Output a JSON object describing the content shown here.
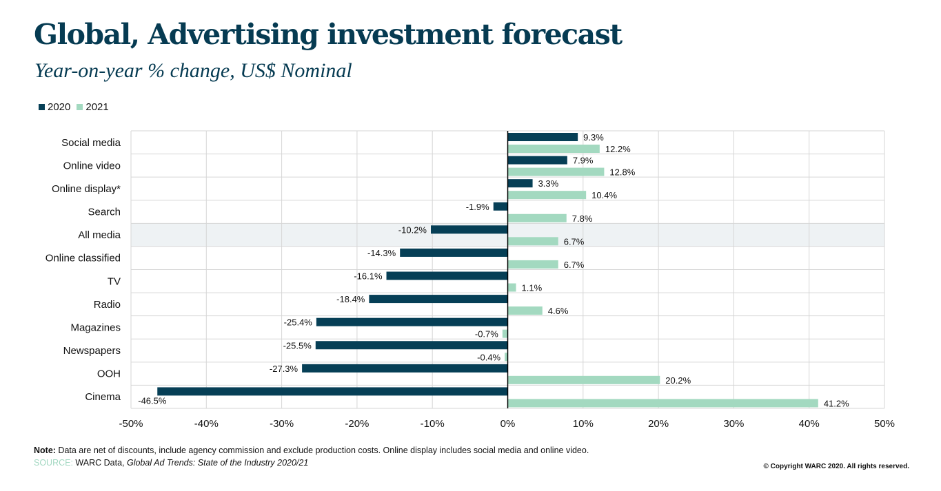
{
  "header": {
    "title": "Global, Advertising investment forecast",
    "subtitle": "Year-on-year % change, US$ Nominal"
  },
  "colors": {
    "series_2020": "#063f56",
    "series_2021": "#a3d9c0",
    "title": "#063b52",
    "highlight_row": "#eef2f4",
    "grid": "#d6d6d6",
    "source_label": "#a3d8c2"
  },
  "chart_data": {
    "type": "bar",
    "orientation": "horizontal",
    "title": "Global, Advertising investment forecast",
    "subtitle": "Year-on-year % change, US$ Nominal",
    "xlabel": "",
    "ylabel": "",
    "xlim": [
      -50,
      50
    ],
    "x_ticks": [
      -50,
      -40,
      -30,
      -20,
      -10,
      0,
      10,
      20,
      30,
      40,
      50
    ],
    "x_tick_labels": [
      "-50%",
      "-40%",
      "-30%",
      "-20%",
      "-10%",
      "0%",
      "10%",
      "20%",
      "30%",
      "40%",
      "50%"
    ],
    "grid": true,
    "legend_position": "top-left",
    "highlighted_category": "All media",
    "categories": [
      "Social media",
      "Online video",
      "Online display*",
      "Search",
      "All media",
      "Online classified",
      "TV",
      "Radio",
      "Magazines",
      "Newspapers",
      "OOH",
      "Cinema"
    ],
    "series": [
      {
        "name": "2020",
        "values": [
          9.3,
          7.9,
          3.3,
          -1.9,
          -10.2,
          -14.3,
          -16.1,
          -18.4,
          -25.4,
          -25.5,
          -27.3,
          -46.5
        ],
        "labels": [
          "9.3%",
          "7.9%",
          "3.3%",
          "-1.9%",
          "-10.2%",
          "-14.3%",
          "-16.1%",
          "-18.4%",
          "-25.4%",
          "-25.5%",
          "-27.3%",
          "-46.5%"
        ]
      },
      {
        "name": "2021",
        "values": [
          12.2,
          12.8,
          10.4,
          7.8,
          6.7,
          6.7,
          1.1,
          4.6,
          -0.7,
          -0.4,
          20.2,
          41.2
        ],
        "labels": [
          "12.2%",
          "12.8%",
          "10.4%",
          "7.8%",
          "6.7%",
          "6.7%",
          "1.1%",
          "4.6%",
          "-0.7%",
          "-0.4%",
          "20.2%",
          "41.2%"
        ]
      }
    ]
  },
  "footer": {
    "note_label": "Note:",
    "note_text": " Data are net of discounts, include agency commission and exclude production costs. Online display includes social media and online video.",
    "source_label": "SOURCE:",
    "source_text": " WARC Data, ",
    "source_title": "Global Ad Trends: State of the Industry 2020/21",
    "copyright": "© Copyright WARC 2020. All rights reserved."
  }
}
